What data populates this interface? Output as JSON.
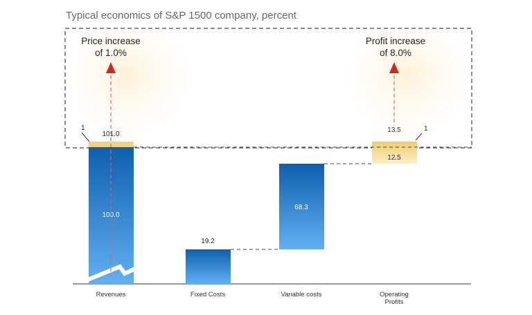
{
  "chart_data": {
    "type": "waterfall",
    "title": "Typical economics of S&P 1500 company, percent",
    "categories": [
      "Revenues",
      "Fixed Costs",
      "Variable costs",
      "Operating Profits"
    ],
    "category_lines": [
      [
        "Revenues"
      ],
      [
        "Fixed Costs"
      ],
      [
        "Variable costs"
      ],
      [
        "Operating",
        "Profits"
      ]
    ],
    "values": [
      100.0,
      19.2,
      68.3,
      12.5
    ],
    "value_labels": [
      "100.0",
      "19.2",
      "68.3",
      "12.5"
    ],
    "increments": [
      {
        "category": "Revenues",
        "value": 1,
        "label": "1",
        "total": "101.0"
      },
      {
        "category": "Operating Profits",
        "value": 1,
        "label": "1",
        "total": "13.5"
      }
    ],
    "annotations": [
      {
        "lines": [
          "Price increase",
          "of 1.0%"
        ]
      },
      {
        "lines": [
          "Profit increase",
          "of 8.0%"
        ]
      }
    ],
    "axis_break": true,
    "colors": {
      "bar_top": "#0f5fae",
      "bar_bottom": "#62b0f2",
      "increment": "#f2d27a",
      "arrow": "#d0281e"
    }
  }
}
